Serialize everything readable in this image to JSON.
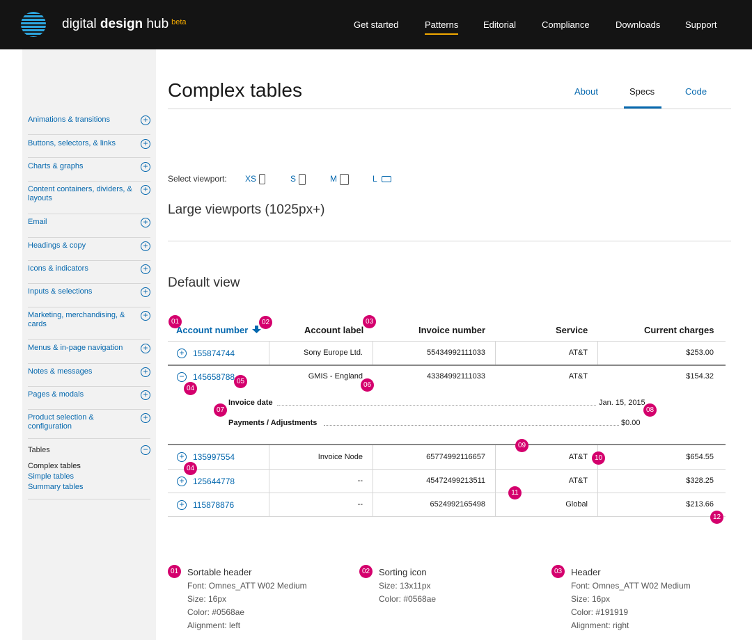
{
  "brand": {
    "name_light": "digital ",
    "name_bold": "design",
    "name_tail": " hub",
    "beta": "beta"
  },
  "nav": [
    "Get started",
    "Patterns",
    "Editorial",
    "Compliance",
    "Downloads",
    "Support"
  ],
  "sidebar": {
    "items": [
      "Animations & transitions",
      "Buttons, selectors, & links",
      "Charts & graphs",
      "Content containers, dividers, & layouts",
      "Email",
      "Headings & copy",
      "Icons & indicators",
      "Inputs & selections",
      "Marketing, merchandising, & cards",
      "Menus & in-page navigation",
      "Notes & messages",
      "Pages & modals",
      "Product selection & configuration",
      "Tables"
    ],
    "sub_items": [
      "Complex tables",
      "Simple tables",
      "Summary tables"
    ]
  },
  "page": {
    "title": "Complex tables",
    "tabs": [
      "About",
      "Specs",
      "Code"
    ],
    "viewport_label": "Select viewport:",
    "viewports": [
      "XS",
      "S",
      "M",
      "L"
    ],
    "section_title": "Large viewports (1025px+)",
    "subsection_title": "Default view"
  },
  "table": {
    "headers": [
      "Account number",
      "Account label",
      "Invoice number",
      "Service",
      "Current charges"
    ],
    "rows": [
      {
        "account": "155874744",
        "label": "Sony Europe Ltd.",
        "invoice": "55434992111033",
        "service": "AT&T",
        "charges": "$253.00"
      },
      {
        "account": "145658788",
        "label": "GMIS - England",
        "invoice": "43384992111033",
        "service": "AT&T",
        "charges": "$154.32"
      },
      {
        "account": "135997554",
        "label": "Invoice Node",
        "invoice": "65774992116657",
        "service": "AT&T",
        "charges": "$654.55"
      },
      {
        "account": "125644778",
        "label": "--",
        "invoice": "45472499213511",
        "service": "AT&T",
        "charges": "$328.25"
      },
      {
        "account": "115878876",
        "label": "--",
        "invoice": "6524992165498",
        "service": "Global",
        "charges": "$213.66"
      }
    ],
    "details": [
      {
        "label": "Invoice date",
        "value": "Jan. 15, 2015"
      },
      {
        "label": "Payments / Adjustments",
        "value": "$0.00"
      }
    ]
  },
  "badges": [
    "01",
    "02",
    "03",
    "04",
    "05",
    "06",
    "07",
    "08",
    "09",
    "10",
    "04",
    "11",
    "12"
  ],
  "specs": [
    {
      "num": "01",
      "title": "Sortable header",
      "lines": [
        "Font: Omnes_ATT W02 Medium",
        "Size: 16px",
        "Color: #0568ae",
        "Alignment: left"
      ]
    },
    {
      "num": "02",
      "title": "Sorting icon",
      "lines": [
        "Size: 13x11px",
        "Color: #0568ae"
      ]
    },
    {
      "num": "03",
      "title": "Header",
      "lines": [
        "Font: Omnes_ATT W02 Medium",
        "Size: 16px",
        "Color: #191919",
        "Alignment: right"
      ]
    }
  ],
  "colors": {
    "accent": "#0568ae",
    "badge": "#d4006d",
    "nav_active": "#f2a900",
    "topbar": "#141414"
  }
}
